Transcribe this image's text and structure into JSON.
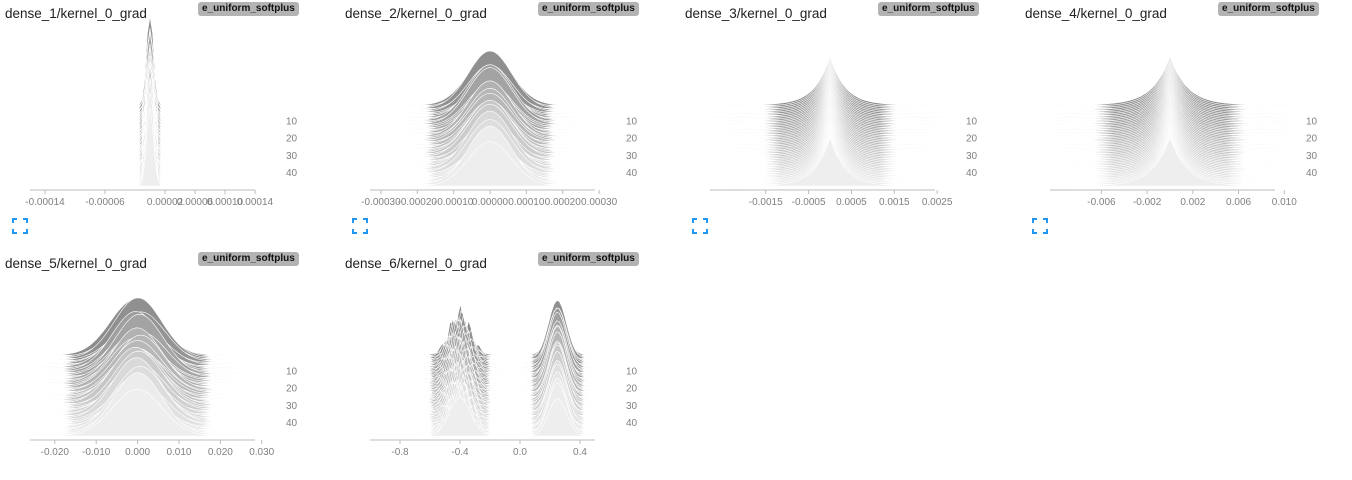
{
  "cards": [
    {
      "title": "dense_1/kernel_0_grad",
      "tag": "e_uniform_softplus",
      "chart_data": {
        "type": "histogram-offset",
        "x_ticks": [
          "-0.00014",
          "-0.00006",
          "0.00002",
          "0.00006",
          "0.00010",
          "0.00014"
        ],
        "x_tick_values": [
          -0.00014,
          -6e-05,
          2e-05,
          6e-05,
          0.0001,
          0.00014
        ],
        "xlim": [
          -0.00016,
          0.00016
        ],
        "y_ticks": [
          "10",
          "20",
          "30",
          "40"
        ],
        "y_tick_values": [
          10,
          20,
          30,
          40
        ],
        "steps": 48,
        "shape": {
          "kind": "single",
          "center": 0.0,
          "width": 4.5e-06,
          "height": 1.6
        }
      }
    },
    {
      "title": "dense_2/kernel_0_grad",
      "tag": "e_uniform_softplus",
      "chart_data": {
        "type": "histogram-offset",
        "x_ticks": [
          "-0.00030",
          "-0.00020",
          "-0.00010",
          "0.00000",
          "0.00010",
          "0.00020",
          "0.00030"
        ],
        "x_tick_values": [
          -0.0003,
          -0.0002,
          -0.0001,
          0.0,
          0.0001,
          0.0002,
          0.0003
        ],
        "xlim": [
          -0.00033,
          0.00033
        ],
        "y_ticks": [
          "10",
          "20",
          "30",
          "40"
        ],
        "y_tick_values": [
          10,
          20,
          30,
          40
        ],
        "steps": 48,
        "shape": {
          "kind": "single",
          "center": 0.0,
          "width": 6e-05,
          "height": 0.9
        }
      }
    },
    {
      "title": "dense_3/kernel_0_grad",
      "tag": "e_uniform_softplus",
      "chart_data": {
        "type": "histogram-offset",
        "x_ticks": [
          "-0.0015",
          "-0.0005",
          "0.0005",
          "0.0015",
          "0.0025"
        ],
        "x_tick_values": [
          -0.0015,
          -0.0005,
          0.0005,
          0.0015,
          0.0025
        ],
        "xlim": [
          -0.0028,
          0.0028
        ],
        "y_ticks": [
          "10",
          "20",
          "30",
          "40"
        ],
        "y_tick_values": [
          10,
          20,
          30,
          40
        ],
        "steps": 48,
        "shape": {
          "kind": "laplace",
          "center": 0.0,
          "width": 0.00035,
          "height": 1.0
        }
      }
    },
    {
      "title": "dense_4/kernel_0_grad",
      "tag": "e_uniform_softplus",
      "chart_data": {
        "type": "histogram-offset",
        "x_ticks": [
          "-0.006",
          "-0.002",
          "0.002",
          "0.006",
          "0.010"
        ],
        "x_tick_values": [
          -0.006,
          -0.002,
          0.002,
          0.006,
          0.01
        ],
        "xlim": [
          -0.0105,
          0.0105
        ],
        "y_ticks": [
          "10",
          "20",
          "30",
          "40"
        ],
        "y_tick_values": [
          10,
          20,
          30,
          40
        ],
        "steps": 48,
        "shape": {
          "kind": "laplace",
          "center": 0.0,
          "width": 0.0015,
          "height": 1.0
        }
      }
    },
    {
      "title": "dense_5/kernel_0_grad",
      "tag": "e_uniform_softplus",
      "chart_data": {
        "type": "histogram-offset",
        "x_ticks": [
          "-0.020",
          "-0.010",
          "0.000",
          "0.010",
          "0.020",
          "0.030"
        ],
        "x_tick_values": [
          -0.02,
          -0.01,
          0.0,
          0.01,
          0.02,
          0.03
        ],
        "xlim": [
          -0.026,
          0.032
        ],
        "y_ticks": [
          "10",
          "20",
          "30",
          "40"
        ],
        "y_tick_values": [
          10,
          20,
          30,
          40
        ],
        "steps": 48,
        "shape": {
          "kind": "single",
          "center": 0.0,
          "width": 0.006,
          "height": 0.95
        }
      }
    },
    {
      "title": "dense_6/kernel_0_grad",
      "tag": "e_uniform_softplus",
      "chart_data": {
        "type": "histogram-offset",
        "x_ticks": [
          "-0.8",
          "-0.4",
          "0.0",
          "0.4"
        ],
        "x_tick_values": [
          -0.8,
          -0.4,
          0.0,
          0.4
        ],
        "xlim": [
          -1.0,
          0.6
        ],
        "y_ticks": [
          "10",
          "20",
          "30",
          "40"
        ],
        "y_tick_values": [
          10,
          20,
          30,
          40
        ],
        "steps": 48,
        "shape": {
          "kind": "bimodal",
          "center": -0.4,
          "width": 0.07,
          "height": 0.8,
          "center2": 0.25,
          "width2": 0.06,
          "height2": 1.0
        }
      }
    }
  ],
  "colors": {
    "front": "#eeeeee",
    "back": "#8c8c8c",
    "axis": "#bdbdbd",
    "tick_text": "#808080",
    "title": "#212121",
    "tag_bg": "#b3b3b3",
    "expand_icon": "#2196f3"
  },
  "icons": {
    "expand": "expand-corners-icon"
  }
}
